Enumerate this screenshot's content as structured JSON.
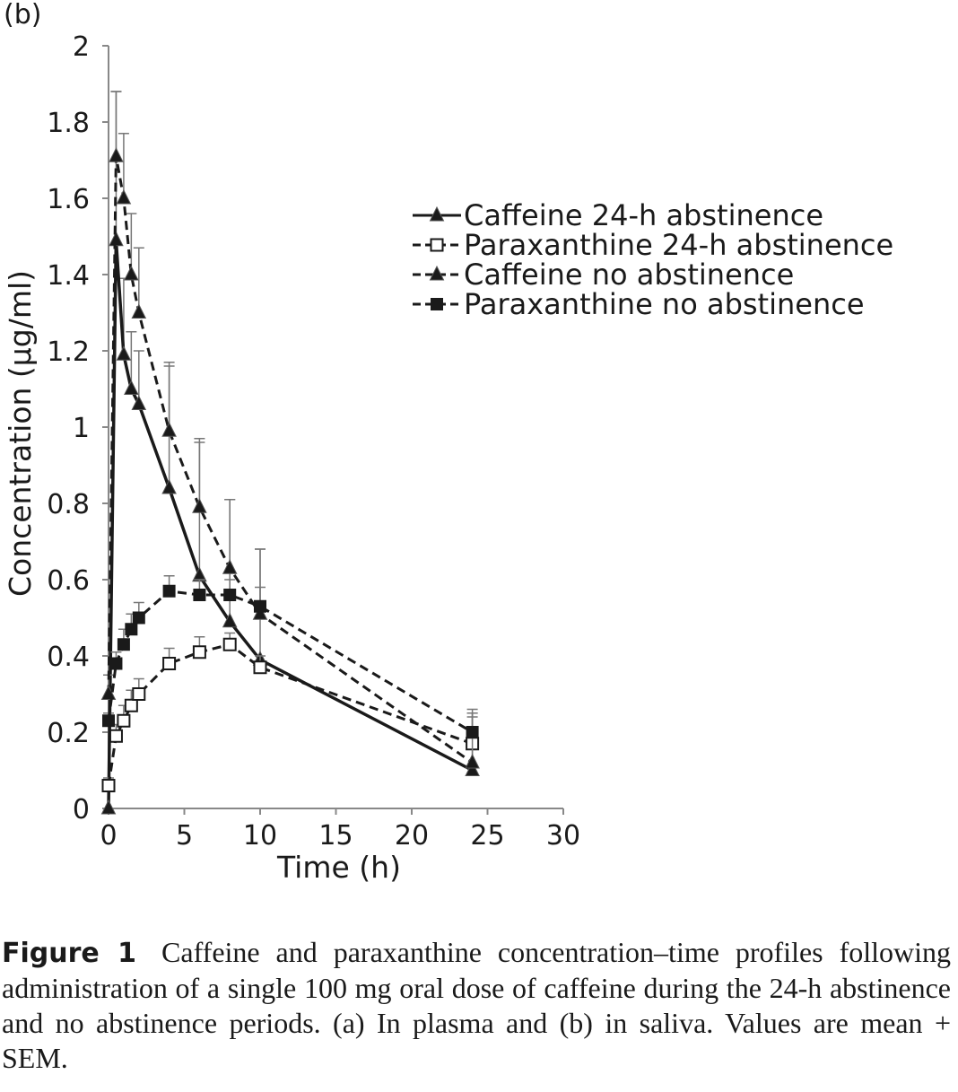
{
  "panel_label": "(b)",
  "caption": {
    "label": "Figure 1",
    "text": "Caffeine and paraxanthine concentration–time profiles following administration of a single 100 mg oral dose of caffeine during the 24-h abstinence and no abstinence periods. (a) In plasma and (b) in saliva. Values are mean + SEM."
  },
  "chart_data": {
    "type": "line",
    "xlabel": "Time (h)",
    "ylabel": "Concentration (µg/ml)",
    "xlim": [
      0,
      30
    ],
    "ylim": [
      0,
      2
    ],
    "xticks": [
      0,
      5,
      10,
      15,
      20,
      25,
      30
    ],
    "yticks": [
      0,
      0.2,
      0.4,
      0.6,
      0.8,
      1,
      1.2,
      1.4,
      1.6,
      1.8,
      2
    ],
    "ytick_labels": [
      "0",
      "0.2",
      "0.4",
      "0.6",
      "0.8",
      "1",
      "1.2",
      "1.4",
      "1.6",
      "1.8",
      "2"
    ],
    "grid": false,
    "legend_position": "right",
    "series": [
      {
        "name": "Caffeine 24-h abstinence",
        "line": "solid",
        "marker": "triangle-filled",
        "color": "#1a1a1a",
        "points": [
          [
            0,
            0.0
          ],
          [
            0.5,
            1.49
          ],
          [
            1,
            1.19
          ],
          [
            1.5,
            1.1
          ],
          [
            2,
            1.06
          ],
          [
            4,
            0.84
          ],
          [
            6,
            0.61
          ],
          [
            8,
            0.49
          ],
          [
            10,
            0.39
          ],
          [
            24,
            0.1
          ]
        ],
        "err": [
          0,
          0.39,
          0.2,
          0.15,
          0.14,
          0.33,
          0.36,
          0.32,
          0.29,
          0.16
        ]
      },
      {
        "name": "Paraxanthine 24-h abstinence",
        "line": "dashed",
        "marker": "square-open",
        "color": "#1a1a1a",
        "points": [
          [
            0,
            0.06
          ],
          [
            0.5,
            0.19
          ],
          [
            1,
            0.23
          ],
          [
            1.5,
            0.27
          ],
          [
            2,
            0.3
          ],
          [
            4,
            0.38
          ],
          [
            6,
            0.41
          ],
          [
            8,
            0.43
          ],
          [
            10,
            0.37
          ],
          [
            24,
            0.17
          ]
        ],
        "err": [
          0.02,
          0.03,
          0.04,
          0.04,
          0.04,
          0.04,
          0.04,
          0.03,
          0.03,
          0.07
        ]
      },
      {
        "name": "Caffeine no abstinence",
        "line": "dashed",
        "marker": "triangle-filled",
        "color": "#1a1a1a",
        "points": [
          [
            0,
            0.3
          ],
          [
            0.5,
            1.71
          ],
          [
            1,
            1.6
          ],
          [
            1.5,
            1.4
          ],
          [
            2,
            1.3
          ],
          [
            4,
            0.99
          ],
          [
            6,
            0.79
          ],
          [
            8,
            0.63
          ],
          [
            10,
            0.51
          ],
          [
            24,
            0.12
          ]
        ],
        "err": [
          0.05,
          0.17,
          0.17,
          0.16,
          0.17,
          0.17,
          0.17,
          0.18,
          0.17,
          0.13
        ]
      },
      {
        "name": "Paraxanthine no abstinence",
        "line": "dashed",
        "marker": "square-filled",
        "color": "#1a1a1a",
        "points": [
          [
            0,
            0.23
          ],
          [
            0.5,
            0.38
          ],
          [
            1,
            0.43
          ],
          [
            1.5,
            0.47
          ],
          [
            2,
            0.5
          ],
          [
            4,
            0.57
          ],
          [
            6,
            0.56
          ],
          [
            8,
            0.56
          ],
          [
            10,
            0.53
          ],
          [
            24,
            0.2
          ]
        ],
        "err": [
          0.02,
          0.03,
          0.04,
          0.04,
          0.04,
          0.04,
          0.04,
          0.04,
          0.05,
          0.05
        ]
      }
    ]
  }
}
